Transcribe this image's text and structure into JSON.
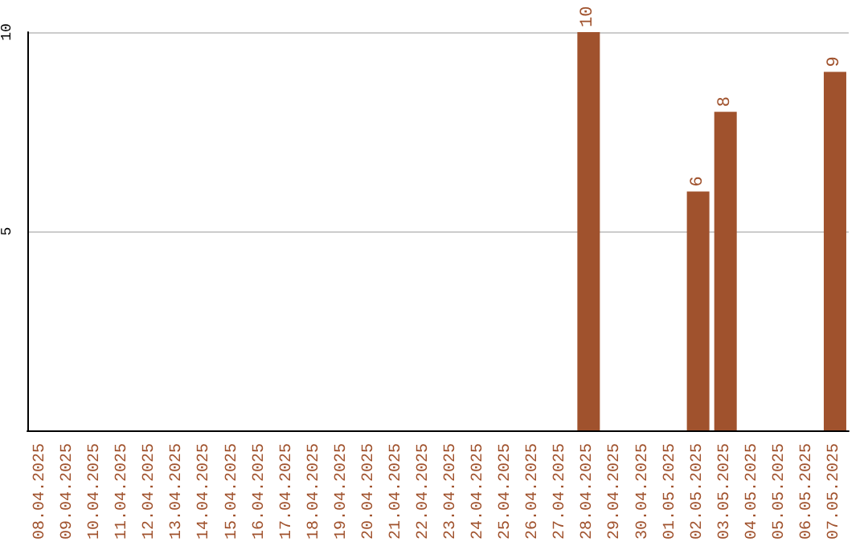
{
  "chart_data": {
    "type": "bar",
    "categories": [
      "08.04.2025",
      "09.04.2025",
      "10.04.2025",
      "11.04.2025",
      "12.04.2025",
      "13.04.2025",
      "14.04.2025",
      "15.04.2025",
      "16.04.2025",
      "17.04.2025",
      "18.04.2025",
      "19.04.2025",
      "20.04.2025",
      "21.04.2025",
      "22.04.2025",
      "23.04.2025",
      "24.04.2025",
      "25.04.2025",
      "26.04.2025",
      "27.04.2025",
      "28.04.2025",
      "29.04.2025",
      "30.04.2025",
      "01.05.2025",
      "02.05.2025",
      "03.05.2025",
      "04.05.2025",
      "05.05.2025",
      "06.05.2025",
      "07.05.2025"
    ],
    "values": [
      0,
      0,
      0,
      0,
      0,
      0,
      0,
      0,
      0,
      0,
      0,
      0,
      0,
      0,
      0,
      0,
      0,
      0,
      0,
      0,
      10,
      0,
      0,
      0,
      6,
      8,
      0,
      0,
      0,
      9
    ],
    "value_labels": [
      null,
      null,
      null,
      null,
      null,
      null,
      null,
      null,
      null,
      null,
      null,
      null,
      null,
      null,
      null,
      null,
      null,
      null,
      null,
      null,
      "10",
      null,
      null,
      null,
      "6",
      "8",
      null,
      null,
      null,
      "9"
    ],
    "color": "#a0522d",
    "ylim": [
      0,
      10
    ],
    "yticks": [
      5,
      10
    ],
    "grid": "y"
  }
}
